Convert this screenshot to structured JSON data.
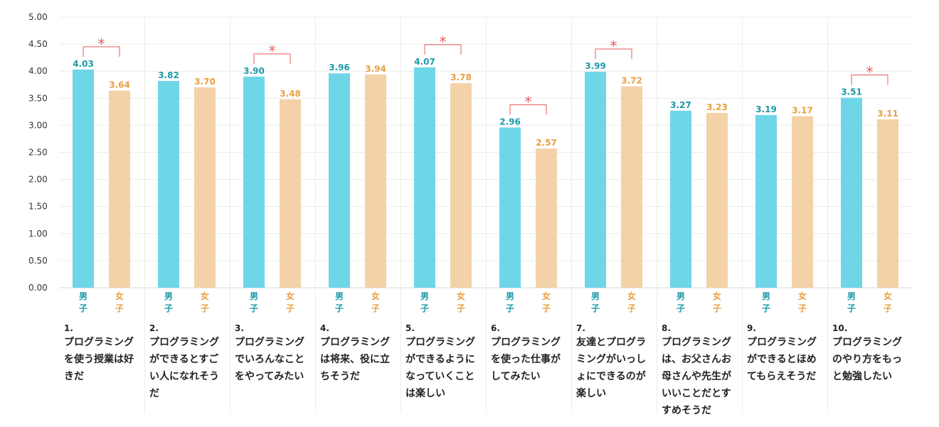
{
  "chart_data": {
    "type": "bar",
    "title": "",
    "xlabel": "",
    "ylabel": "",
    "ylim": [
      0,
      5
    ],
    "yticks": [
      "0.00",
      "0.50",
      "1.00",
      "1.50",
      "2.00",
      "2.50",
      "3.00",
      "3.50",
      "4.00",
      "4.50",
      "5.00"
    ],
    "categories": [
      {
        "num": "1.",
        "label": "プログラミングを使う授業は好きだ"
      },
      {
        "num": "2.",
        "label": "プログラミングができるとすごい人になれそうだ"
      },
      {
        "num": "3.",
        "label": "プログラミングでいろんなことをやってみたい"
      },
      {
        "num": "4.",
        "label": "プログラミングは将来、役に立ちそうだ"
      },
      {
        "num": "5.",
        "label": "プログラミングができるようになっていくことは楽しい"
      },
      {
        "num": "6.",
        "label": "プログラミングを使った仕事がしてみたい"
      },
      {
        "num": "7.",
        "label": "友達とプログラミングがいっしょにできるのが楽しい"
      },
      {
        "num": "8.",
        "label": "プログラミングは、お父さんお母さんや先生がいいことだとすすめそうだ"
      },
      {
        "num": "9.",
        "label": "プログラミングができるとほめてもらえそうだ"
      },
      {
        "num": "10.",
        "label": "プログラミングのやり方をもっと勉強したい"
      }
    ],
    "series": [
      {
        "name": "男子",
        "label_chars": [
          "男",
          "子"
        ],
        "color": "#6fd6e8",
        "label_color": "#1a9aa8",
        "values": [
          4.03,
          3.82,
          3.9,
          3.96,
          4.07,
          2.96,
          3.99,
          3.27,
          3.19,
          3.51
        ],
        "value_labels": [
          "4.03",
          "3.82",
          "3.90",
          "3.96",
          "4.07",
          "2.96",
          "3.99",
          "3.27",
          "3.19",
          "3.51"
        ]
      },
      {
        "name": "女子",
        "label_chars": [
          "女",
          "子"
        ],
        "color": "#f3d2a8",
        "label_color": "#e8a040",
        "values": [
          3.64,
          3.7,
          3.48,
          3.94,
          3.78,
          2.57,
          3.72,
          3.23,
          3.17,
          3.11
        ],
        "value_labels": [
          "3.64",
          "3.70",
          "3.48",
          "3.94",
          "3.78",
          "2.57",
          "3.72",
          "3.23",
          "3.17",
          "3.11"
        ]
      }
    ],
    "significance": {
      "symbol": "*",
      "color": "#e85a5a",
      "indices": [
        0,
        2,
        4,
        5,
        6,
        9
      ]
    }
  }
}
